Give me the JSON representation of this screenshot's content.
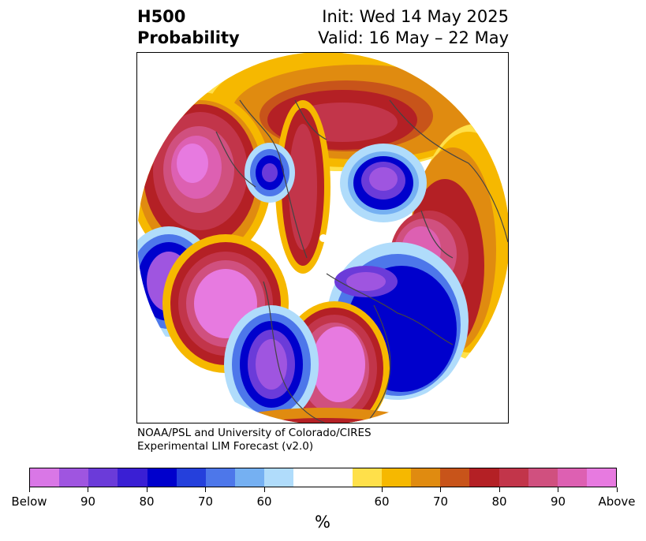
{
  "header": {
    "title_line1": "H500",
    "title_line2": "Probability",
    "init_label": "Init: Wed 14 May 2025",
    "valid_label": "Valid: 16 May – 22 May"
  },
  "credit": {
    "line1": "NOAA/PSL and University of Colorado/CIRES",
    "line2": "Experimental LIM Forecast (v2.0)"
  },
  "colorbar": {
    "unit": "%",
    "colors": [
      "#d977e6",
      "#9f55e0",
      "#6b3bd9",
      "#3a1fd4",
      "#0000cc",
      "#2540dc",
      "#4d77ea",
      "#75b0f2",
      "#b0dcfb",
      "#ffffff",
      "#ffffff",
      "#ffe04a",
      "#f6b800",
      "#e08b10",
      "#c8541a",
      "#b42025",
      "#c2354a",
      "#d0507f",
      "#dd60b2",
      "#e77ae0"
    ],
    "ticks": [
      {
        "label": "Below"
      },
      {
        "label": "90"
      },
      {
        "label": "80"
      },
      {
        "label": "70"
      },
      {
        "label": "60"
      },
      {
        "label": "60"
      },
      {
        "label": "70"
      },
      {
        "label": "80"
      },
      {
        "label": "90"
      },
      {
        "label": "Above"
      }
    ]
  },
  "map": {
    "colors": {
      "above_deep": "#e77ae0",
      "above_high": "#d0507f",
      "above_mid": "#b42025",
      "above_low": "#e08b10",
      "above_min": "#ffe04a",
      "below_deep": "#9f55e0",
      "below_high": "#0000cc",
      "below_mid": "#4d77ea",
      "below_min": "#b0dcfb",
      "coast": "#444444"
    }
  }
}
